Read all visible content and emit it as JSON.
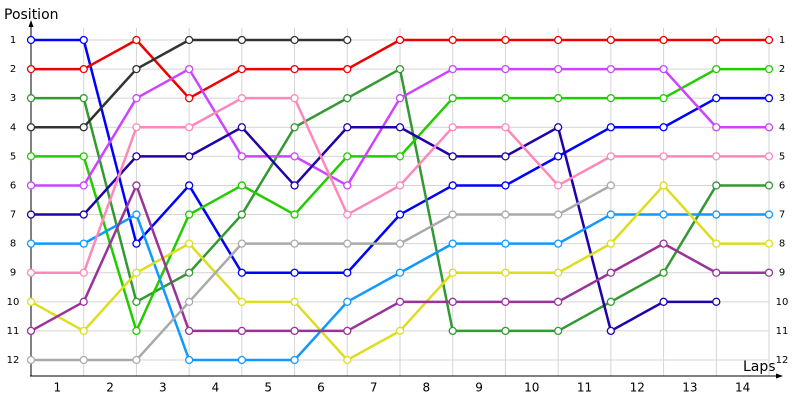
{
  "chart_data": {
    "type": "line",
    "y_label": "Position",
    "x_label": "Laps",
    "x": [
      0,
      1,
      2,
      3,
      4,
      5,
      6,
      7,
      8,
      9,
      10,
      11,
      12,
      13,
      14
    ],
    "xlim": [
      0,
      14
    ],
    "xticks": [
      1,
      2,
      3,
      4,
      5,
      6,
      7,
      8,
      9,
      10,
      11,
      12,
      13,
      14
    ],
    "ylim": [
      0.5,
      12.5
    ],
    "y_inverted": true,
    "yticks": [
      1,
      2,
      3,
      4,
      5,
      6,
      7,
      8,
      9,
      10,
      11,
      12
    ],
    "grid": true,
    "series": [
      {
        "color": "#0000ff",
        "values": [
          1,
          1,
          8,
          6,
          9,
          9,
          9,
          7,
          6,
          6,
          5,
          4,
          4,
          3,
          3
        ]
      },
      {
        "color": "#ee0000",
        "values": [
          2,
          2,
          1,
          3,
          2,
          2,
          2,
          1,
          1,
          1,
          1,
          1,
          1,
          1,
          1
        ]
      },
      {
        "color": "#339933",
        "values": [
          3,
          3,
          10,
          9,
          7,
          4,
          3,
          2,
          11,
          11,
          11,
          10,
          9,
          6,
          6
        ]
      },
      {
        "color": "#333333",
        "values": [
          4,
          4,
          2,
          1,
          1,
          1,
          1,
          null,
          null,
          null,
          null,
          null,
          null,
          null,
          null
        ]
      },
      {
        "color": "#22cc00",
        "values": [
          5,
          5,
          11,
          7,
          6,
          7,
          5,
          5,
          3,
          3,
          3,
          3,
          3,
          2,
          2
        ]
      },
      {
        "color": "#cc44ff",
        "values": [
          6,
          6,
          3,
          2,
          5,
          5,
          6,
          3,
          2,
          2,
          2,
          2,
          2,
          4,
          4
        ]
      },
      {
        "color": "#2200aa",
        "values": [
          7,
          7,
          5,
          5,
          4,
          6,
          4,
          4,
          5,
          5,
          4,
          11,
          10,
          10,
          null
        ]
      },
      {
        "color": "#1199ff",
        "values": [
          8,
          8,
          7,
          12,
          12,
          12,
          10,
          9,
          8,
          8,
          8,
          7,
          7,
          7,
          7
        ]
      },
      {
        "color": "#ff88bb",
        "values": [
          9,
          9,
          4,
          4,
          3,
          3,
          7,
          6,
          4,
          4,
          6,
          5,
          5,
          5,
          5
        ]
      },
      {
        "color": "#dddd22",
        "values": [
          10,
          11,
          9,
          8,
          10,
          10,
          12,
          11,
          9,
          9,
          9,
          8,
          6,
          8,
          8
        ]
      },
      {
        "color": "#993399",
        "values": [
          11,
          10,
          6,
          11,
          11,
          11,
          11,
          10,
          10,
          10,
          10,
          9,
          8,
          9,
          9
        ]
      },
      {
        "color": "#aaaaaa",
        "values": [
          12,
          12,
          12,
          10,
          8,
          8,
          8,
          8,
          7,
          7,
          7,
          6,
          null,
          null,
          null
        ]
      }
    ]
  }
}
